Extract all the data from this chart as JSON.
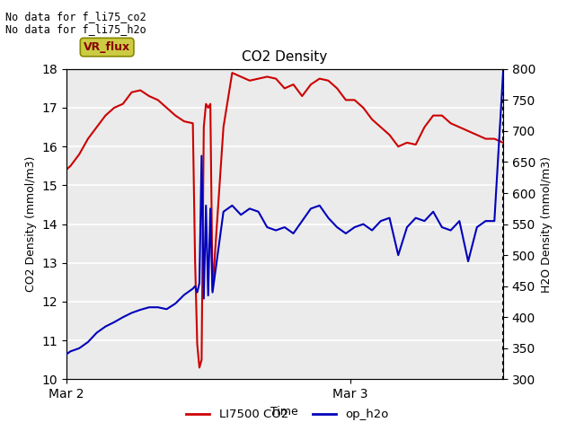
{
  "title": "CO2 Density",
  "xlabel": "Time",
  "ylabel_left": "CO2 Density (mmol/m3)",
  "ylabel_right": "H2O Density (mmol/m3)",
  "annotation_line1": "No data for f_li75_co2",
  "annotation_line2": "No data for f_li75_h2o",
  "legend_box_label": "VR_flux",
  "legend_box_facecolor": "#cccc44",
  "legend_box_edgecolor": "#888800",
  "legend_box_text_color": "#880000",
  "ylim_left": [
    10.0,
    18.0
  ],
  "ylim_right": [
    300,
    800
  ],
  "yticks_left": [
    10.0,
    11.0,
    12.0,
    13.0,
    14.0,
    15.0,
    16.0,
    17.0,
    18.0
  ],
  "yticks_right": [
    300,
    350,
    400,
    450,
    500,
    550,
    600,
    650,
    700,
    750,
    800
  ],
  "background_color": "#ebebeb",
  "grid_color": "#ffffff",
  "co2_color": "#cc0000",
  "h2o_color": "#0000bb",
  "xlim": [
    0.0,
    1.0
  ],
  "xtick_positions": [
    0.0,
    0.65
  ],
  "xtick_labels": [
    "Mar 2",
    "Mar 3"
  ],
  "legend_items": [
    {
      "label": "LI7500 CO2",
      "color": "#cc0000"
    },
    {
      "label": "op_h2o",
      "color": "#0000bb"
    }
  ],
  "co2_x": [
    0.0,
    0.01,
    0.03,
    0.05,
    0.07,
    0.09,
    0.11,
    0.13,
    0.15,
    0.17,
    0.19,
    0.21,
    0.23,
    0.25,
    0.27,
    0.29,
    0.295,
    0.3,
    0.305,
    0.31,
    0.315,
    0.32,
    0.325,
    0.33,
    0.335,
    0.36,
    0.38,
    0.4,
    0.42,
    0.44,
    0.46,
    0.48,
    0.5,
    0.52,
    0.54,
    0.56,
    0.58,
    0.6,
    0.62,
    0.64,
    0.66,
    0.68,
    0.7,
    0.72,
    0.74,
    0.76,
    0.78,
    0.8,
    0.82,
    0.84,
    0.86,
    0.88,
    0.9,
    0.92,
    0.94,
    0.96,
    0.98,
    1.0
  ],
  "co2_y": [
    15.4,
    15.5,
    15.8,
    16.2,
    16.5,
    16.8,
    17.0,
    17.1,
    17.4,
    17.45,
    17.3,
    17.2,
    17.0,
    16.8,
    16.65,
    16.6,
    13.1,
    10.9,
    10.3,
    10.5,
    16.5,
    17.1,
    17.0,
    17.1,
    12.3,
    16.5,
    17.9,
    17.8,
    17.7,
    17.75,
    17.8,
    17.75,
    17.5,
    17.6,
    17.3,
    17.6,
    17.75,
    17.7,
    17.5,
    17.2,
    17.2,
    17.0,
    16.7,
    16.5,
    16.3,
    16.0,
    16.1,
    16.05,
    16.5,
    16.8,
    16.8,
    16.6,
    16.5,
    16.4,
    16.3,
    16.2,
    16.2,
    16.1
  ],
  "h2o_x": [
    0.0,
    0.01,
    0.03,
    0.05,
    0.07,
    0.09,
    0.11,
    0.13,
    0.15,
    0.17,
    0.19,
    0.21,
    0.23,
    0.25,
    0.27,
    0.29,
    0.295,
    0.3,
    0.305,
    0.31,
    0.315,
    0.32,
    0.325,
    0.33,
    0.335,
    0.36,
    0.38,
    0.4,
    0.42,
    0.44,
    0.46,
    0.48,
    0.5,
    0.52,
    0.54,
    0.56,
    0.58,
    0.6,
    0.62,
    0.64,
    0.66,
    0.68,
    0.7,
    0.72,
    0.74,
    0.76,
    0.78,
    0.8,
    0.82,
    0.84,
    0.86,
    0.88,
    0.9,
    0.92,
    0.94,
    0.96,
    0.98,
    1.0
  ],
  "h2o_y": [
    340,
    345,
    350,
    360,
    375,
    385,
    392,
    400,
    407,
    412,
    416,
    416,
    413,
    422,
    436,
    446,
    450,
    440,
    455,
    660,
    430,
    580,
    435,
    575,
    440,
    570,
    580,
    565,
    575,
    570,
    545,
    540,
    545,
    535,
    555,
    575,
    580,
    560,
    545,
    535,
    545,
    550,
    540,
    555,
    560,
    500,
    545,
    560,
    555,
    570,
    545,
    540,
    555,
    490,
    545,
    555,
    555,
    795
  ]
}
